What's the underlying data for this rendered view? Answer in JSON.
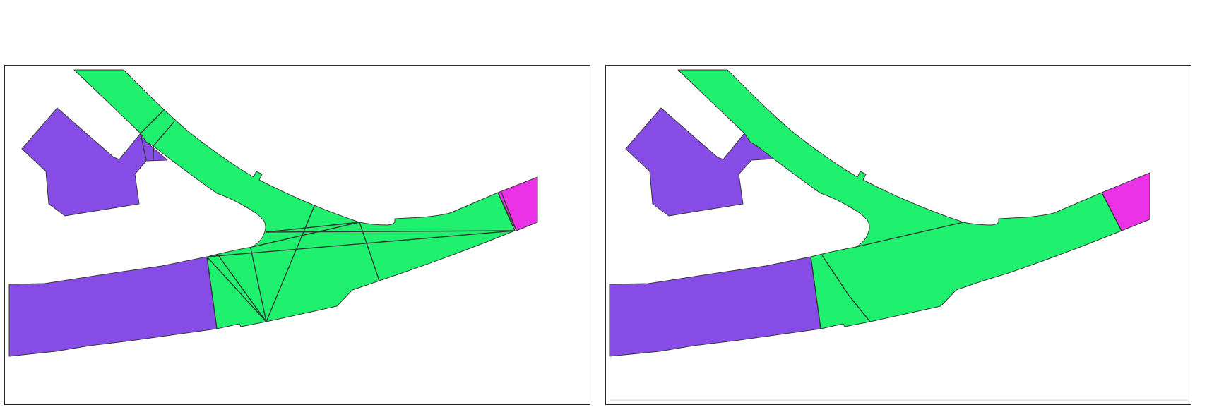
{
  "colors": {
    "corridor": "#1ff06e",
    "room": "#874be6",
    "portal": "#ec32e6",
    "edge": "#2f3b35",
    "border": "#2a2a2a"
  },
  "panels": [
    {
      "id": "left",
      "variant": "dense-triangulation",
      "edge_count": 24
    },
    {
      "id": "right",
      "variant": "merged-regions",
      "edge_count": 4
    }
  ]
}
